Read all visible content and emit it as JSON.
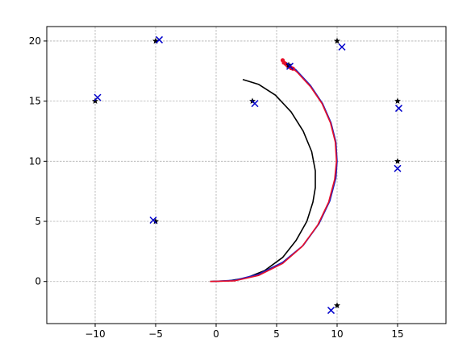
{
  "chart_data": {
    "type": "scatter",
    "title": "",
    "xlabel": "",
    "ylabel": "",
    "xlim": [
      -14,
      19
    ],
    "ylim": [
      -3.5,
      21.2
    ],
    "x_ticks": [
      -10,
      -5,
      0,
      5,
      10,
      15
    ],
    "y_ticks": [
      0,
      5,
      10,
      15,
      20
    ],
    "x_tick_labels": [
      "−10",
      "−5",
      "0",
      "5",
      "10",
      "15"
    ],
    "y_tick_labels": [
      "0",
      "5",
      "10",
      "15",
      "20"
    ],
    "grid": true,
    "legend": "none",
    "colors": {
      "star": "#000000",
      "cross": "#0000cc",
      "black_curve": "#000000",
      "blue_curve": "#1f1fbf",
      "red_curve": "#e8102a"
    },
    "series": [
      {
        "marker": "star",
        "points": [
          [
            -10,
            15
          ],
          [
            -5,
            20
          ],
          [
            -5,
            5
          ],
          [
            3,
            15
          ],
          [
            6,
            18
          ],
          [
            10,
            20
          ],
          [
            15,
            15
          ],
          [
            15,
            10
          ],
          [
            10,
            -2
          ]
        ]
      },
      {
        "marker": "x",
        "points": [
          [
            -9.8,
            15.3
          ],
          [
            -4.7,
            20.1
          ],
          [
            -5.2,
            5.1
          ],
          [
            3.2,
            14.8
          ],
          [
            6.1,
            17.9
          ],
          [
            10.4,
            19.5
          ],
          [
            15.1,
            14.4
          ],
          [
            15.0,
            9.4
          ],
          [
            9.5,
            -2.4
          ]
        ]
      },
      {
        "marker": "line",
        "color": "black",
        "points": [
          [
            -0.5,
            0
          ],
          [
            1.0,
            0.05
          ],
          [
            2.5,
            0.3
          ],
          [
            4.0,
            0.9
          ],
          [
            5.5,
            2.0
          ],
          [
            6.6,
            3.4
          ],
          [
            7.5,
            5.0
          ],
          [
            8.0,
            6.6
          ],
          [
            8.2,
            7.8
          ],
          [
            8.2,
            9.2
          ],
          [
            7.9,
            10.8
          ],
          [
            7.2,
            12.5
          ],
          [
            6.2,
            14.1
          ],
          [
            4.9,
            15.5
          ],
          [
            3.5,
            16.4
          ],
          [
            2.2,
            16.8
          ]
        ]
      },
      {
        "marker": "line",
        "color": "blue",
        "points": [
          [
            -0.3,
            0
          ],
          [
            1.5,
            0.1
          ],
          [
            3.5,
            0.6
          ],
          [
            5.5,
            1.6
          ],
          [
            7.2,
            3.0
          ],
          [
            8.5,
            4.8
          ],
          [
            9.4,
            6.7
          ],
          [
            9.9,
            8.6
          ],
          [
            10.0,
            10.0
          ],
          [
            9.9,
            11.6
          ],
          [
            9.5,
            13.2
          ],
          [
            8.8,
            14.8
          ],
          [
            7.8,
            16.3
          ],
          [
            6.6,
            17.6
          ],
          [
            5.5,
            18.4
          ]
        ]
      },
      {
        "marker": "line",
        "color": "red",
        "points": [
          [
            -0.5,
            0
          ],
          [
            1.5,
            0.05
          ],
          [
            3.5,
            0.5
          ],
          [
            5.5,
            1.5
          ],
          [
            7.1,
            2.9
          ],
          [
            8.4,
            4.7
          ],
          [
            9.3,
            6.6
          ],
          [
            9.8,
            8.5
          ],
          [
            9.95,
            10.0
          ],
          [
            9.85,
            11.6
          ],
          [
            9.45,
            13.2
          ],
          [
            8.75,
            14.8
          ],
          [
            7.8,
            16.2
          ],
          [
            6.7,
            17.4
          ],
          [
            5.4,
            18.5
          ]
        ]
      },
      {
        "marker": "circle",
        "color": "red",
        "points": [
          [
            5.5,
            18.4
          ],
          [
            5.6,
            18.2
          ],
          [
            5.75,
            18.1
          ],
          [
            5.9,
            17.95
          ],
          [
            6.05,
            17.85
          ],
          [
            6.2,
            17.75
          ],
          [
            6.35,
            17.7
          ]
        ]
      }
    ]
  }
}
